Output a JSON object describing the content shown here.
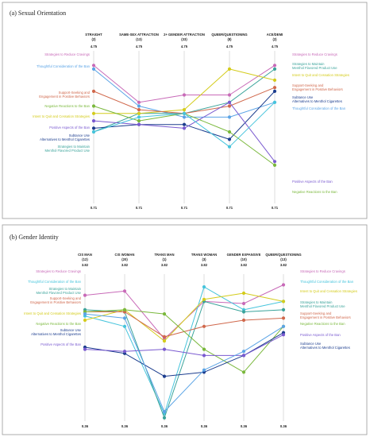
{
  "chart_data": [
    {
      "type": "line",
      "title": "(a) Sexual Orientation",
      "ylim": [
        0.71,
        4.75
      ],
      "y_top_label": "4.75",
      "y_bottom_label": "0.71",
      "categories": [
        "STRAIGHT",
        "SAME-SEX ATTRACTION",
        "2+ GENDER ATTRACTION",
        "QUEER/QUESTIONING",
        "ACE/DEMI"
      ],
      "category_counts": [
        "(2)",
        "(13)",
        "(33)",
        "(8)",
        "(2)"
      ],
      "series": [
        {
          "name": "Strategies to Reduce Cravings",
          "color": "#c86ab8",
          "values": [
            4.4,
            3.4,
            3.6,
            3.6,
            4.4
          ]
        },
        {
          "name": "Thoughtful Consideration of the Ban",
          "color": "#5ba4e6",
          "values": [
            4.3,
            3.3,
            3.0,
            3.0,
            3.4
          ]
        },
        {
          "name": "Strategies to Maintain Menthol Flavored Product Use",
          "color": "#3aa39a",
          "values": [
            2.6,
            3.1,
            3.1,
            3.4,
            4.3
          ]
        },
        {
          "name": "Intent to Quit and Cessation Strategies",
          "color": "#d4cc1c",
          "values": [
            3.1,
            3.1,
            3.2,
            4.3,
            4.0
          ]
        },
        {
          "name": "Support-Seeking and Engagement in Positive Behaviors",
          "color": "#d0684c",
          "values": [
            3.7,
            3.2,
            3.1,
            3.3,
            3.8
          ]
        },
        {
          "name": "Subtance Use Alternatives to Menthol Cigarettes",
          "color": "#1c3d8e",
          "values": [
            2.7,
            2.8,
            2.8,
            2.4,
            3.7
          ]
        },
        {
          "name": "Negative Reactions to the Ban",
          "color": "#7ab83c",
          "values": [
            3.3,
            2.9,
            3.1,
            2.6,
            1.7
          ]
        },
        {
          "name": "Positive Aspects of the Ban",
          "color": "#7a5ad0",
          "values": [
            2.9,
            2.8,
            2.7,
            3.4,
            1.8
          ]
        },
        {
          "name": "Menthol Flavored Product Use",
          "color": "#46c4dc",
          "values": [
            2.6,
            3.0,
            3.1,
            2.2,
            3.4
          ]
        }
      ],
      "legend_left": [
        {
          "text": "Strategies to Reduce Cravings",
          "color": "#c86ab8"
        },
        {
          "text": "Thoughtful Consideration of the Ban",
          "color": "#5ba4e6"
        },
        {
          "text": "Support-Seeking and",
          "color": "#d0684c"
        },
        {
          "text": "Engagement in Positive Behaviors",
          "color": "#d0684c"
        },
        {
          "text": "Negative Reactions to the Ban",
          "color": "#7ab83c"
        },
        {
          "text": "Intent to Quit and Cessation Strategies",
          "color": "#d4cc1c"
        },
        {
          "text": "Positive Aspects of the Ban",
          "color": "#7a5ad0"
        },
        {
          "text": "Subtance Use",
          "color": "#1c3d8e"
        },
        {
          "text": "Alternatives to Menthol Cigarettes",
          "color": "#1c3d8e"
        },
        {
          "text": "Strategies to Maintain",
          "color": "#3aa39a"
        },
        {
          "text": "Menthol Flavored Product Use",
          "color": "#3aa39a"
        }
      ],
      "legend_right": [
        {
          "text": "Strategies to Reduce Cravings",
          "color": "#c86ab8"
        },
        {
          "text": "Strategies to Maintain",
          "color": "#3aa39a"
        },
        {
          "text": "Menthol Flavored Product Use",
          "color": "#3aa39a"
        },
        {
          "text": "Intent to Quit and Cessation Strategies",
          "color": "#d4cc1c"
        },
        {
          "text": "Support-Seeking and",
          "color": "#d0684c"
        },
        {
          "text": "Engagement in Positive Behaviors",
          "color": "#d0684c"
        },
        {
          "text": "Subtance Use",
          "color": "#1c3d8e"
        },
        {
          "text": "Alternatives to Menthol Cigarettes",
          "color": "#1c3d8e"
        },
        {
          "text": "Thoughtful Consideration of the Ban",
          "color": "#5ba4e6"
        },
        {
          "text": "Positive Aspects of the Ban",
          "color": "#7a5ad0"
        },
        {
          "text": "Negative Reactions to the Ban",
          "color": "#7ab83c"
        }
      ]
    },
    {
      "type": "line",
      "title": "(b) Gender Identity",
      "ylim": [
        0.36,
        3.82
      ],
      "y_top_label": "3.82",
      "y_bottom_label": "0.36",
      "categories": [
        "CIS MAN",
        "CIS WOMAN",
        "TRANS MAN",
        "TRANS WOMAN",
        "GENDER EXPANSIVE",
        "QUEER/QUESTIONING"
      ],
      "category_counts": [
        "(12)",
        "(20)",
        "(1)",
        "(3)",
        "(10)",
        "(13)"
      ],
      "series": [
        {
          "name": "Strategies to Reduce Cravings",
          "color": "#c86ab8",
          "values": [
            3.35,
            3.45,
            2.3,
            3.2,
            3.15,
            3.6
          ]
        },
        {
          "name": "Thoughtful Consideration of the Ban",
          "color": "#46c4dc",
          "values": [
            2.85,
            2.6,
            0.5,
            3.55,
            3.0,
            3.2
          ]
        },
        {
          "name": "Strategies to Maintain Menthol Flavored Product Use",
          "color": "#3aa39a",
          "values": [
            3.0,
            2.95,
            0.4,
            3.2,
            2.95,
            3.0
          ]
        },
        {
          "name": "Intent to Quit and Cessation Strategies",
          "color": "#d4cc1c",
          "values": [
            2.75,
            3.0,
            2.25,
            3.25,
            3.4,
            3.2
          ]
        },
        {
          "name": "Support-Seeking and Engagement in Positive Behaviors",
          "color": "#d0684c",
          "values": [
            2.95,
            2.95,
            2.35,
            2.6,
            2.75,
            2.8
          ]
        },
        {
          "name": "Negative Reactions to the Ban",
          "color": "#7ab83c",
          "values": [
            2.95,
            3.0,
            2.9,
            2.05,
            1.5,
            2.6
          ]
        },
        {
          "name": "Subtance Use Alternatives to Menthol Cigarettes",
          "color": "#1c3d8e",
          "values": [
            2.1,
            1.95,
            1.4,
            1.5,
            1.9,
            2.45
          ]
        },
        {
          "name": "Positive Aspects of the Ban",
          "color": "#7a5ad0",
          "values": [
            2.05,
            2.0,
            2.05,
            1.9,
            1.9,
            2.4
          ]
        },
        {
          "name": "Menthol Flavored Product Use",
          "color": "#5ba4e6",
          "values": [
            2.9,
            2.8,
            0.55,
            1.55,
            2.0,
            2.6
          ]
        }
      ],
      "legend_left": [
        {
          "text": "Strategies to Reduce Cravings",
          "color": "#c86ab8"
        },
        {
          "text": "Thoughtful Consideration of the Ban",
          "color": "#46c4dc"
        },
        {
          "text": "Strategies to Maintain",
          "color": "#3aa39a"
        },
        {
          "text": "Menthol Flavored Product Use",
          "color": "#3aa39a"
        },
        {
          "text": "Support-Seeking and",
          "color": "#d0684c"
        },
        {
          "text": "Engagement in Positive Behaviors",
          "color": "#d0684c"
        },
        {
          "text": "Intent to Quit and Cessation Strategies",
          "color": "#d4cc1c"
        },
        {
          "text": "Negative Reactions to the Ban",
          "color": "#7ab83c"
        },
        {
          "text": "Subtance Use",
          "color": "#1c3d8e"
        },
        {
          "text": "Alternatives to Menthol Cigarettes",
          "color": "#1c3d8e"
        },
        {
          "text": "Positive Aspects of the Ban",
          "color": "#7a5ad0"
        }
      ],
      "legend_right": [
        {
          "text": "Strategies to Reduce Cravings",
          "color": "#c86ab8"
        },
        {
          "text": "Thoughtful Consideration of the Ban",
          "color": "#46c4dc"
        },
        {
          "text": "Intent to Quit and Cessation Strategies",
          "color": "#d4cc1c"
        },
        {
          "text": "Strategies to Maintain",
          "color": "#3aa39a"
        },
        {
          "text": "Menthol Flavored Product Use",
          "color": "#3aa39a"
        },
        {
          "text": "Support-Seeking and",
          "color": "#d0684c"
        },
        {
          "text": "Engagement in Positive Behaviors",
          "color": "#d0684c"
        },
        {
          "text": "Negative Reactions to the Ban",
          "color": "#7ab83c"
        },
        {
          "text": "Positive Aspects of the Ban",
          "color": "#7a5ad0"
        },
        {
          "text": "Subtance Use",
          "color": "#1c3d8e"
        },
        {
          "text": "Alternatives to Menthol Cigarettes",
          "color": "#1c3d8e"
        }
      ]
    }
  ]
}
